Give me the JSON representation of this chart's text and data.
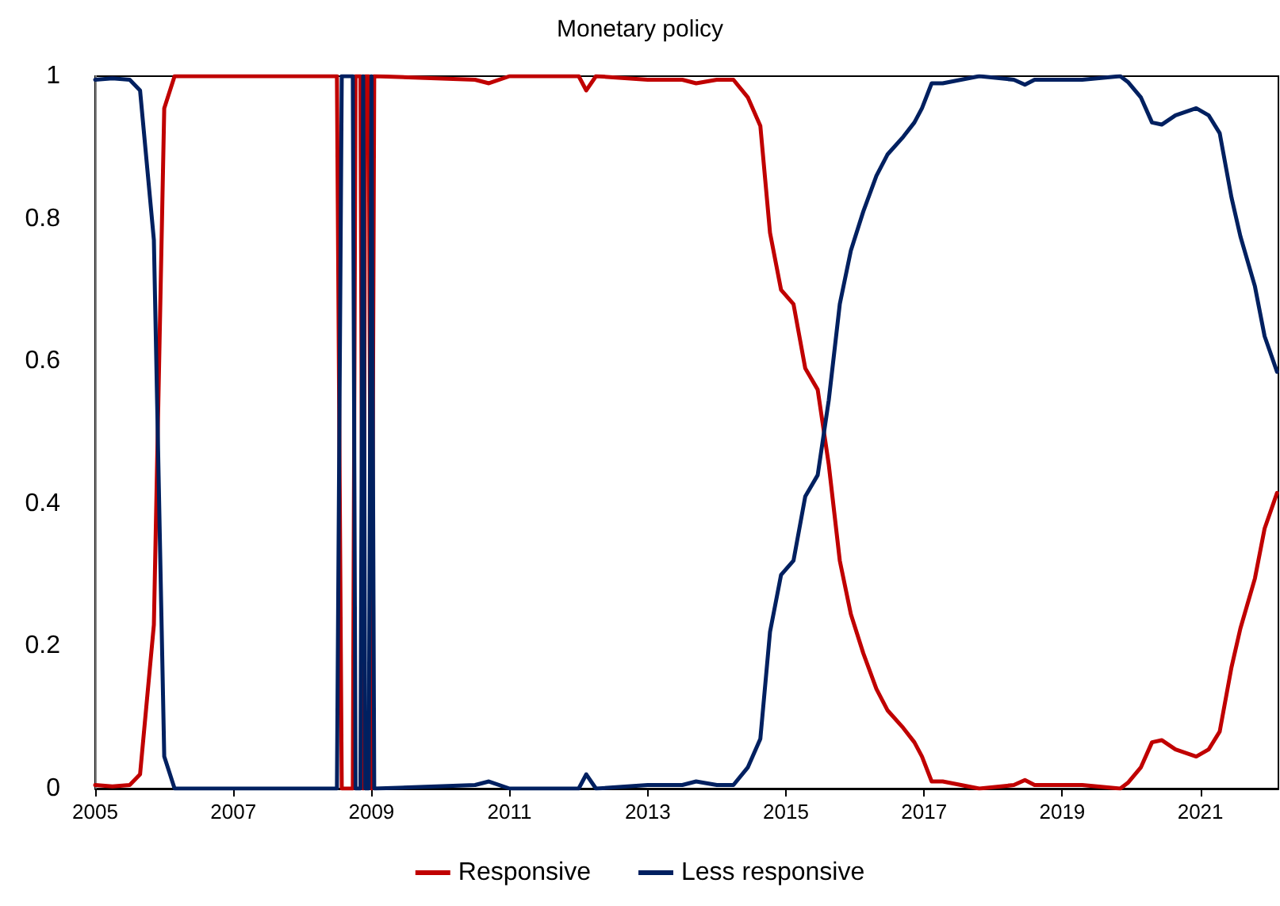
{
  "chart_data": {
    "type": "line",
    "title": "Monetary policy",
    "x": [
      2005.0,
      2005.25,
      2005.5,
      2005.65,
      2005.85,
      2006.0,
      2006.15,
      2008.5,
      2008.57,
      2008.73,
      2008.77,
      2008.84,
      2008.88,
      2008.91,
      2008.96,
      2009.0,
      2009.04,
      2010.5,
      2010.7,
      2011.0,
      2012.0,
      2012.11,
      2012.25,
      2013.0,
      2013.5,
      2013.7,
      2014.0,
      2014.24,
      2014.45,
      2014.63,
      2014.77,
      2014.93,
      2015.11,
      2015.28,
      2015.46,
      2015.62,
      2015.78,
      2015.94,
      2016.12,
      2016.31,
      2016.47,
      2016.7,
      2016.86,
      2016.97,
      2017.11,
      2017.27,
      2017.8,
      2018.3,
      2018.46,
      2018.6,
      2019.29,
      2019.84,
      2019.95,
      2020.14,
      2020.3,
      2020.44,
      2020.64,
      2020.94,
      2021.12,
      2021.28,
      2021.45,
      2021.58,
      2021.79,
      2021.93,
      2022.11
    ],
    "series": [
      {
        "name": "Responsive",
        "color": "#c00000",
        "values": [
          0.005,
          0.003,
          0.005,
          0.02,
          0.23,
          0.955,
          1,
          1,
          0,
          0,
          1,
          1,
          0,
          1,
          1,
          0,
          1,
          0.995,
          0.99,
          1,
          1,
          0.98,
          1,
          0.995,
          0.995,
          0.99,
          0.995,
          0.995,
          0.97,
          0.93,
          0.78,
          0.7,
          0.68,
          0.59,
          0.56,
          0.455,
          0.32,
          0.245,
          0.19,
          0.14,
          0.11,
          0.085,
          0.065,
          0.045,
          0.01,
          0.01,
          0,
          0.005,
          0.012,
          0.005,
          0.005,
          0,
          0.008,
          0.03,
          0.065,
          0.068,
          0.055,
          0.045,
          0.055,
          0.08,
          0.17,
          0.225,
          0.295,
          0.365,
          0.415
        ]
      },
      {
        "name": "Less responsive",
        "color": "#002060",
        "values": [
          0.995,
          0.997,
          0.995,
          0.98,
          0.77,
          0.045,
          0,
          0,
          1,
          1,
          0,
          0,
          1,
          0,
          0,
          1,
          0,
          0.005,
          0.01,
          0,
          0,
          0.02,
          0,
          0.005,
          0.005,
          0.01,
          0.005,
          0.005,
          0.03,
          0.07,
          0.22,
          0.3,
          0.32,
          0.41,
          0.44,
          0.545,
          0.68,
          0.755,
          0.81,
          0.86,
          0.89,
          0.915,
          0.935,
          0.955,
          0.99,
          0.99,
          1,
          0.995,
          0.988,
          0.995,
          0.995,
          1,
          0.992,
          0.97,
          0.935,
          0.932,
          0.945,
          0.955,
          0.945,
          0.92,
          0.83,
          0.775,
          0.705,
          0.635,
          0.585
        ]
      }
    ],
    "xlim": [
      2005,
      2022.13
    ],
    "xticks": [
      2005,
      2007,
      2009,
      2011,
      2013,
      2015,
      2017,
      2019,
      2021
    ],
    "ylim": [
      0,
      1
    ],
    "yticks": [
      0,
      0.2,
      0.4,
      0.6,
      0.8,
      1
    ],
    "grid": false,
    "legend": "bottom",
    "marker": "none",
    "line_style": "solid"
  }
}
